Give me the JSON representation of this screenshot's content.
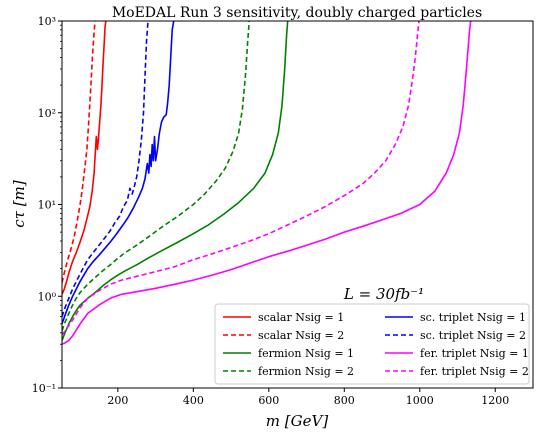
{
  "chart_data": {
    "type": "line",
    "title": "MoEDAL Run 3 sensitivity, doubly charged particles",
    "xlabel": "m [GeV]",
    "ylabel": "cτ [m]",
    "xlim": [
      52,
      1300
    ],
    "ylim": [
      0.1,
      1000
    ],
    "yscale": "log",
    "x_ticks": [
      200,
      400,
      600,
      800,
      1000,
      1200
    ],
    "x_tick_labels": [
      "200",
      "400",
      "600",
      "800",
      "1000",
      "1200"
    ],
    "y_ticks": [
      0.1,
      1,
      10,
      100,
      1000
    ],
    "y_tick_labels": [
      "10⁻¹",
      "10⁰",
      "10¹",
      "10²",
      "10³"
    ],
    "annotation": "L = 30fb⁻¹",
    "legend_position": "lower-right",
    "legend_columns": 2,
    "grid": false,
    "series": [
      {
        "name": "scalar Nsig = 1",
        "color": "#ff0000",
        "linestyle": "solid",
        "x": [
          52,
          58,
          65,
          72,
          80,
          90,
          100,
          110,
          118,
          126,
          132,
          137,
          140,
          143,
          146,
          149,
          152,
          155,
          158,
          161,
          164,
          166,
          168
        ],
        "y": [
          1.05,
          1.2,
          1.5,
          1.9,
          2.4,
          3.0,
          3.9,
          5.2,
          7.0,
          9.5,
          14,
          22,
          35,
          55,
          40,
          55,
          80,
          120,
          200,
          350,
          600,
          850,
          1000
        ]
      },
      {
        "name": "scalar Nsig = 2",
        "color": "#ff0000",
        "linestyle": "dashed",
        "x": [
          52,
          58,
          66,
          75,
          84,
          92,
          100,
          106,
          112,
          118,
          122,
          126,
          130,
          134,
          138,
          140
        ],
        "y": [
          1.4,
          1.8,
          2.4,
          3.2,
          4.4,
          6.5,
          10,
          15,
          24,
          40,
          70,
          130,
          250,
          500,
          850,
          1000
        ]
      },
      {
        "name": "fermion Nsig = 1",
        "color": "#008000",
        "linestyle": "solid",
        "x": [
          52,
          60,
          70,
          80,
          90,
          100,
          120,
          140,
          160,
          180,
          200,
          220,
          250,
          280,
          320,
          360,
          400,
          440,
          480,
          520,
          560,
          590,
          610,
          625,
          635,
          642,
          647,
          650
        ],
        "y": [
          0.33,
          0.4,
          0.5,
          0.6,
          0.7,
          0.8,
          0.95,
          1.1,
          1.3,
          1.5,
          1.7,
          1.9,
          2.2,
          2.6,
          3.2,
          3.9,
          4.8,
          6.0,
          7.8,
          10.5,
          15,
          22,
          35,
          60,
          120,
          300,
          700,
          1000
        ]
      },
      {
        "name": "fermion Nsig = 2",
        "color": "#008000",
        "linestyle": "dashed",
        "x": [
          52,
          60,
          70,
          80,
          90,
          100,
          120,
          140,
          160,
          180,
          200,
          220,
          250,
          280,
          320,
          360,
          400,
          430,
          460,
          485,
          505,
          520,
          530,
          538,
          544,
          548
        ],
        "y": [
          0.42,
          0.52,
          0.65,
          0.8,
          0.95,
          1.1,
          1.35,
          1.6,
          1.9,
          2.2,
          2.6,
          3.0,
          3.6,
          4.4,
          5.8,
          7.5,
          10,
          13,
          18,
          25,
          38,
          60,
          110,
          250,
          600,
          1000
        ]
      },
      {
        "name": "sc. triplet Nsig = 1",
        "color": "#0000ff",
        "linestyle": "solid",
        "x": [
          52,
          60,
          70,
          80,
          90,
          100,
          110,
          120,
          135,
          150,
          165,
          180,
          195,
          210,
          225,
          240,
          255,
          265,
          272,
          278,
          282,
          285,
          288,
          291,
          294,
          297,
          300,
          305,
          310,
          316,
          322,
          328,
          332,
          336,
          340,
          344,
          348
        ],
        "y": [
          0.5,
          0.62,
          0.8,
          1.0,
          1.2,
          1.45,
          1.7,
          2.0,
          2.4,
          2.8,
          3.3,
          3.9,
          4.7,
          5.7,
          7.0,
          9.0,
          12,
          15,
          19,
          28,
          22,
          35,
          26,
          45,
          30,
          55,
          30,
          40,
          60,
          80,
          90,
          95,
          130,
          200,
          400,
          800,
          1000
        ]
      },
      {
        "name": "sc. triplet Nsig = 2",
        "color": "#0000ff",
        "linestyle": "dashed",
        "x": [
          52,
          60,
          70,
          80,
          90,
          100,
          110,
          120,
          135,
          150,
          165,
          180,
          192,
          205,
          215,
          225,
          232,
          238,
          244,
          250,
          256,
          262,
          268,
          272,
          276,
          280
        ],
        "y": [
          0.6,
          0.75,
          0.95,
          1.2,
          1.45,
          1.75,
          2.1,
          2.5,
          3.0,
          3.6,
          4.3,
          5.2,
          6.3,
          7.5,
          9.5,
          11,
          15,
          13,
          16,
          20,
          30,
          50,
          100,
          250,
          600,
          1000
        ]
      },
      {
        "name": "fer. triplet Nsig = 1",
        "color": "#ff00ff",
        "linestyle": "solid",
        "x": [
          52,
          60,
          70,
          80,
          100,
          120,
          150,
          180,
          210,
          250,
          300,
          350,
          400,
          450,
          500,
          550,
          600,
          650,
          700,
          750,
          800,
          850,
          900,
          950,
          1000,
          1040,
          1070,
          1090,
          1105,
          1115,
          1122,
          1128,
          1132,
          1135
        ],
        "y": [
          0.3,
          0.31,
          0.33,
          0.37,
          0.5,
          0.65,
          0.8,
          0.95,
          1.05,
          1.12,
          1.22,
          1.35,
          1.5,
          1.7,
          1.95,
          2.3,
          2.7,
          3.1,
          3.6,
          4.2,
          5.0,
          5.8,
          6.8,
          8.0,
          10,
          14,
          22,
          35,
          60,
          120,
          250,
          500,
          800,
          1000
        ]
      },
      {
        "name": "fer. triplet Nsig = 2",
        "color": "#ff00ff",
        "linestyle": "dashed",
        "x": [
          52,
          60,
          70,
          80,
          100,
          120,
          150,
          180,
          210,
          250,
          300,
          350,
          400,
          450,
          500,
          550,
          600,
          650,
          700,
          750,
          800,
          850,
          880,
          910,
          935,
          955,
          970,
          980,
          988,
          994,
          998
        ],
        "y": [
          0.38,
          0.42,
          0.48,
          0.55,
          0.75,
          0.95,
          1.15,
          1.35,
          1.5,
          1.65,
          1.85,
          2.1,
          2.5,
          2.9,
          3.4,
          4.0,
          4.8,
          6.0,
          7.5,
          9.5,
          12.5,
          17,
          22,
          30,
          45,
          70,
          120,
          220,
          400,
          700,
          1000
        ]
      }
    ]
  }
}
